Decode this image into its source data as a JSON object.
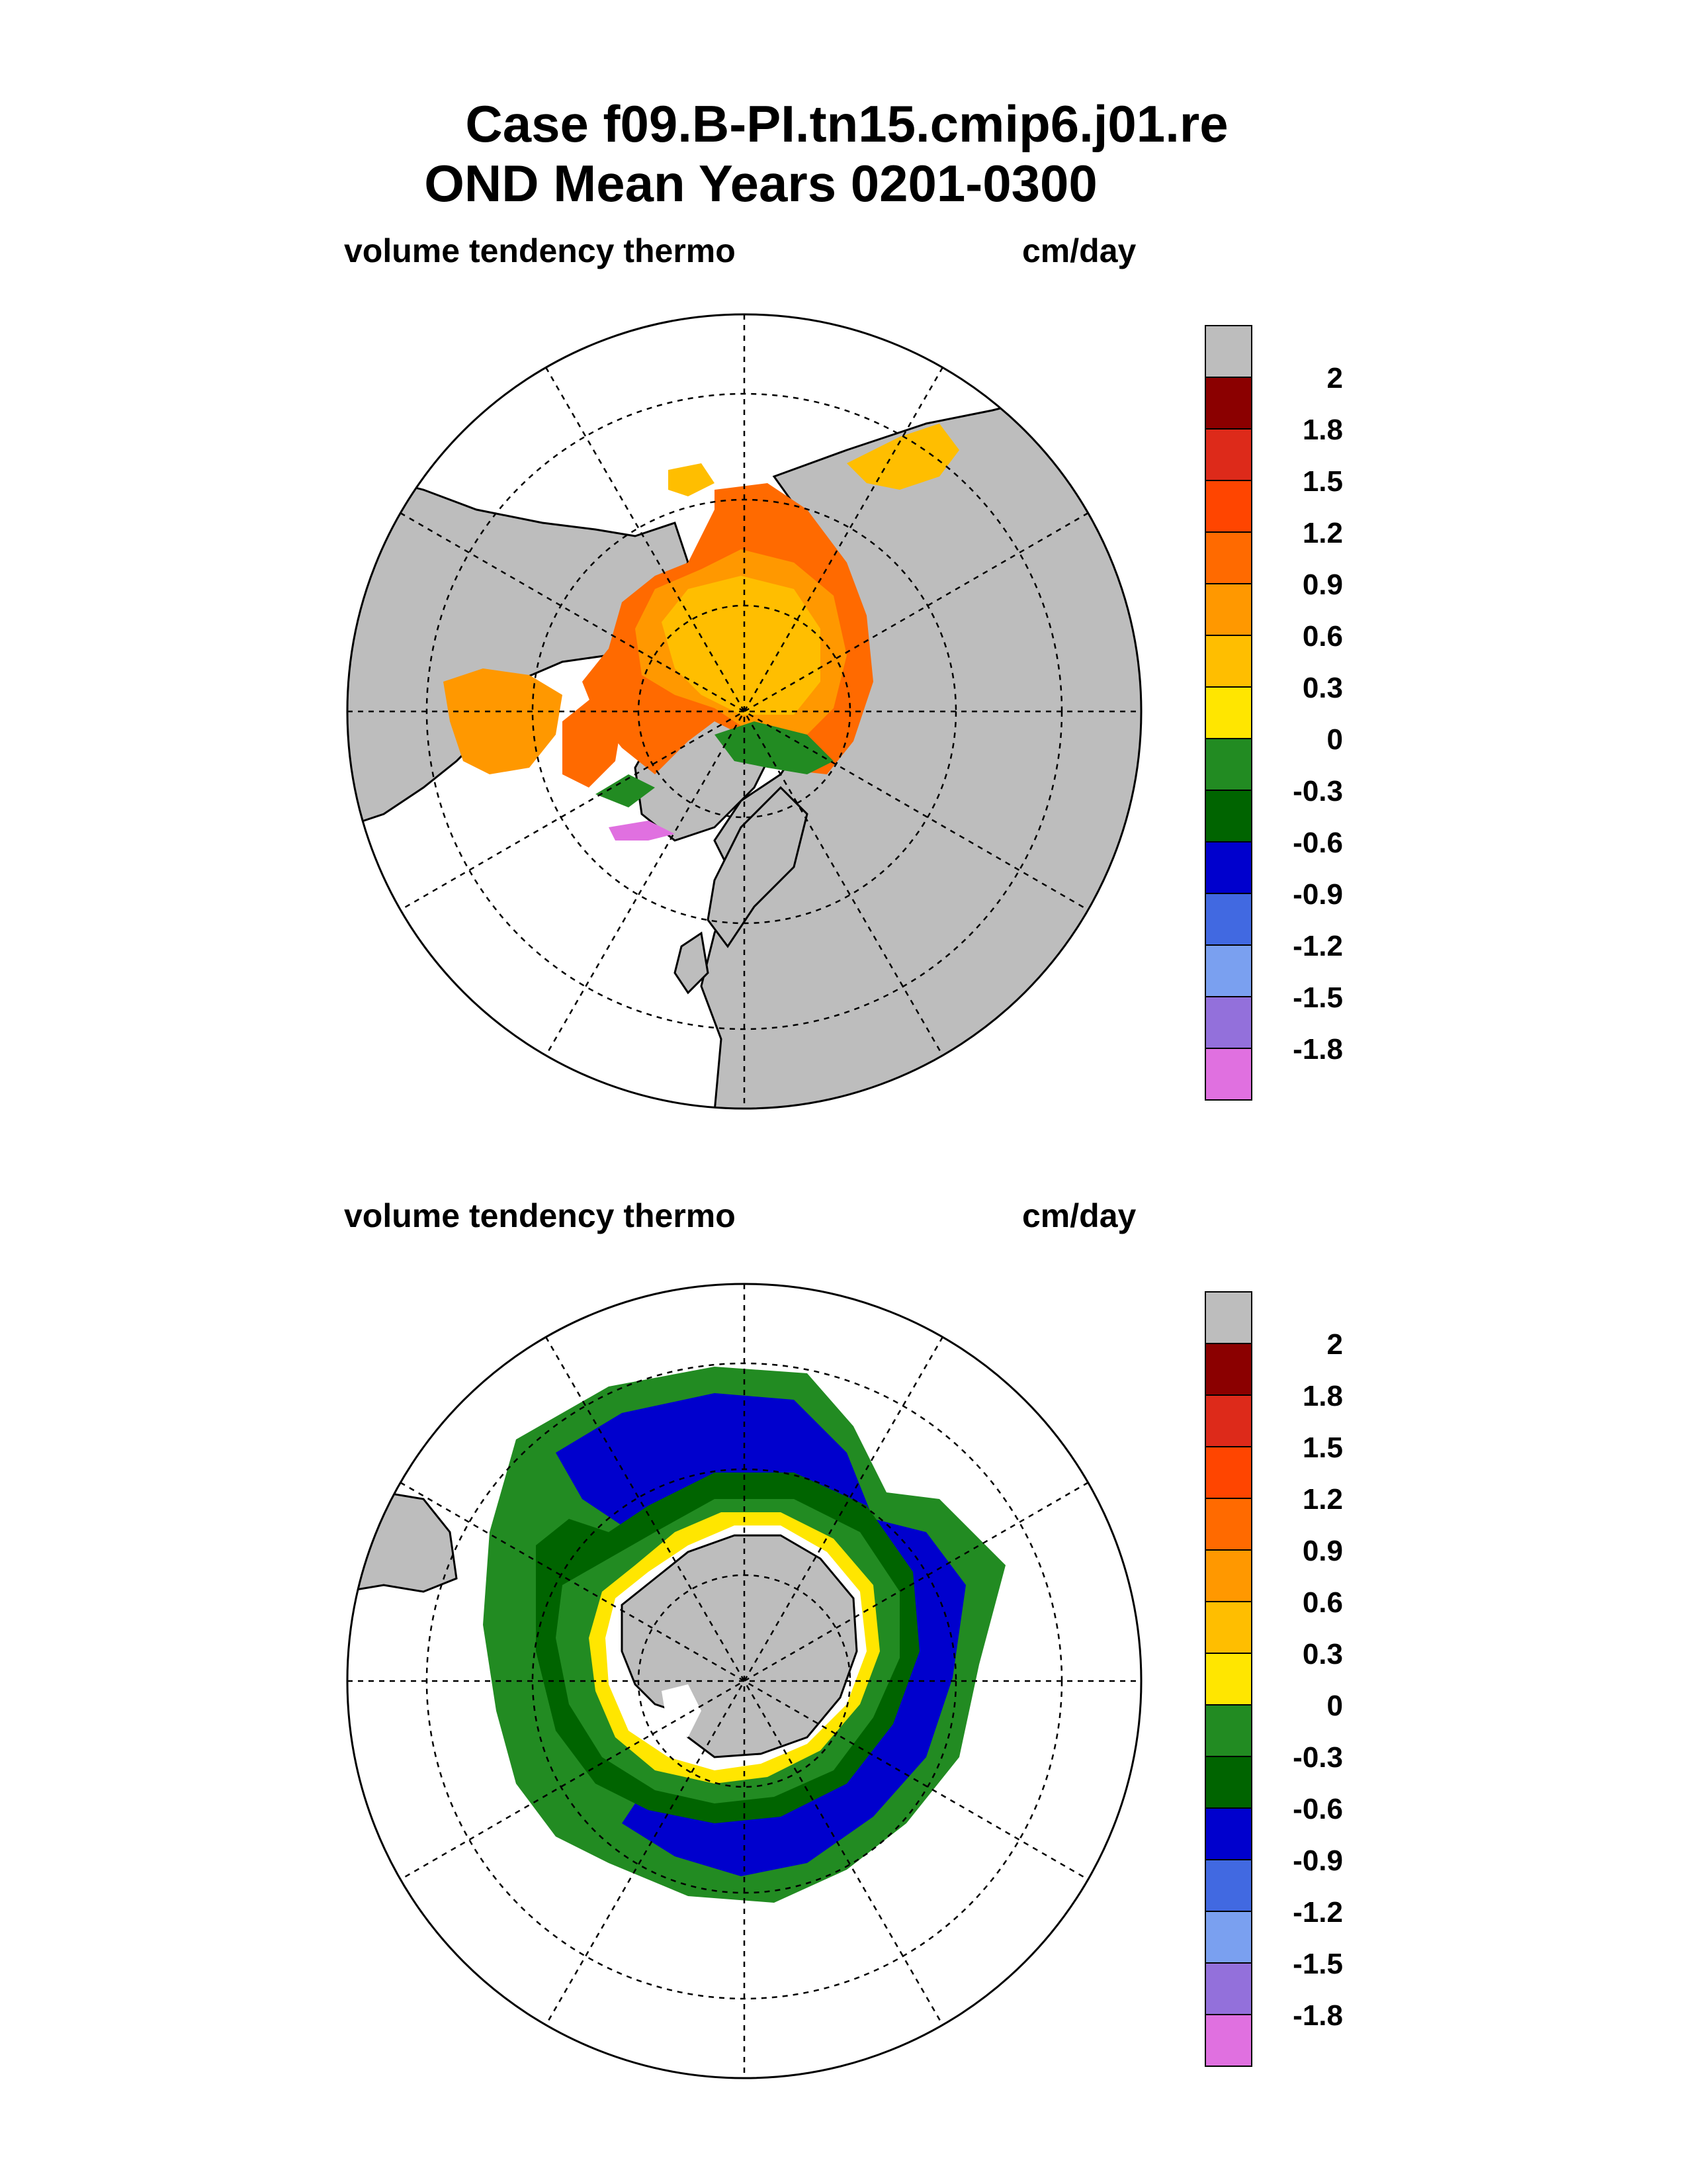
{
  "header": {
    "line1": "Case f09.B-PI.tn15.cmip6.j01.re",
    "line2": "OND Mean   Years 0201-0300"
  },
  "panels": [
    {
      "id": "north",
      "hemisphere": "Arctic",
      "title_left": "volume tendency thermo",
      "title_right": "cm/day"
    },
    {
      "id": "south",
      "hemisphere": "Antarctic",
      "title_left": "volume tendency thermo",
      "title_right": "cm/day"
    }
  ],
  "colorbar": {
    "labels": [
      "2",
      "1.8",
      "1.5",
      "1.2",
      "0.9",
      "0.6",
      "0.3",
      "0",
      "-0.3",
      "-0.6",
      "-0.9",
      "-1.2",
      "-1.5",
      "-1.8"
    ],
    "colors": [
      "#bdbdbd",
      "#8b0000",
      "#dd2a1a",
      "#ff4500",
      "#ff6a00",
      "#ff9800",
      "#ffbe00",
      "#ffe600",
      "#228b22",
      "#006400",
      "#0000cd",
      "#4169e1",
      "#7aa0f0",
      "#9370db",
      "#e070e0"
    ]
  },
  "colors": {
    "land": "#bdbdbd",
    "ocean": "#ffffff"
  }
}
